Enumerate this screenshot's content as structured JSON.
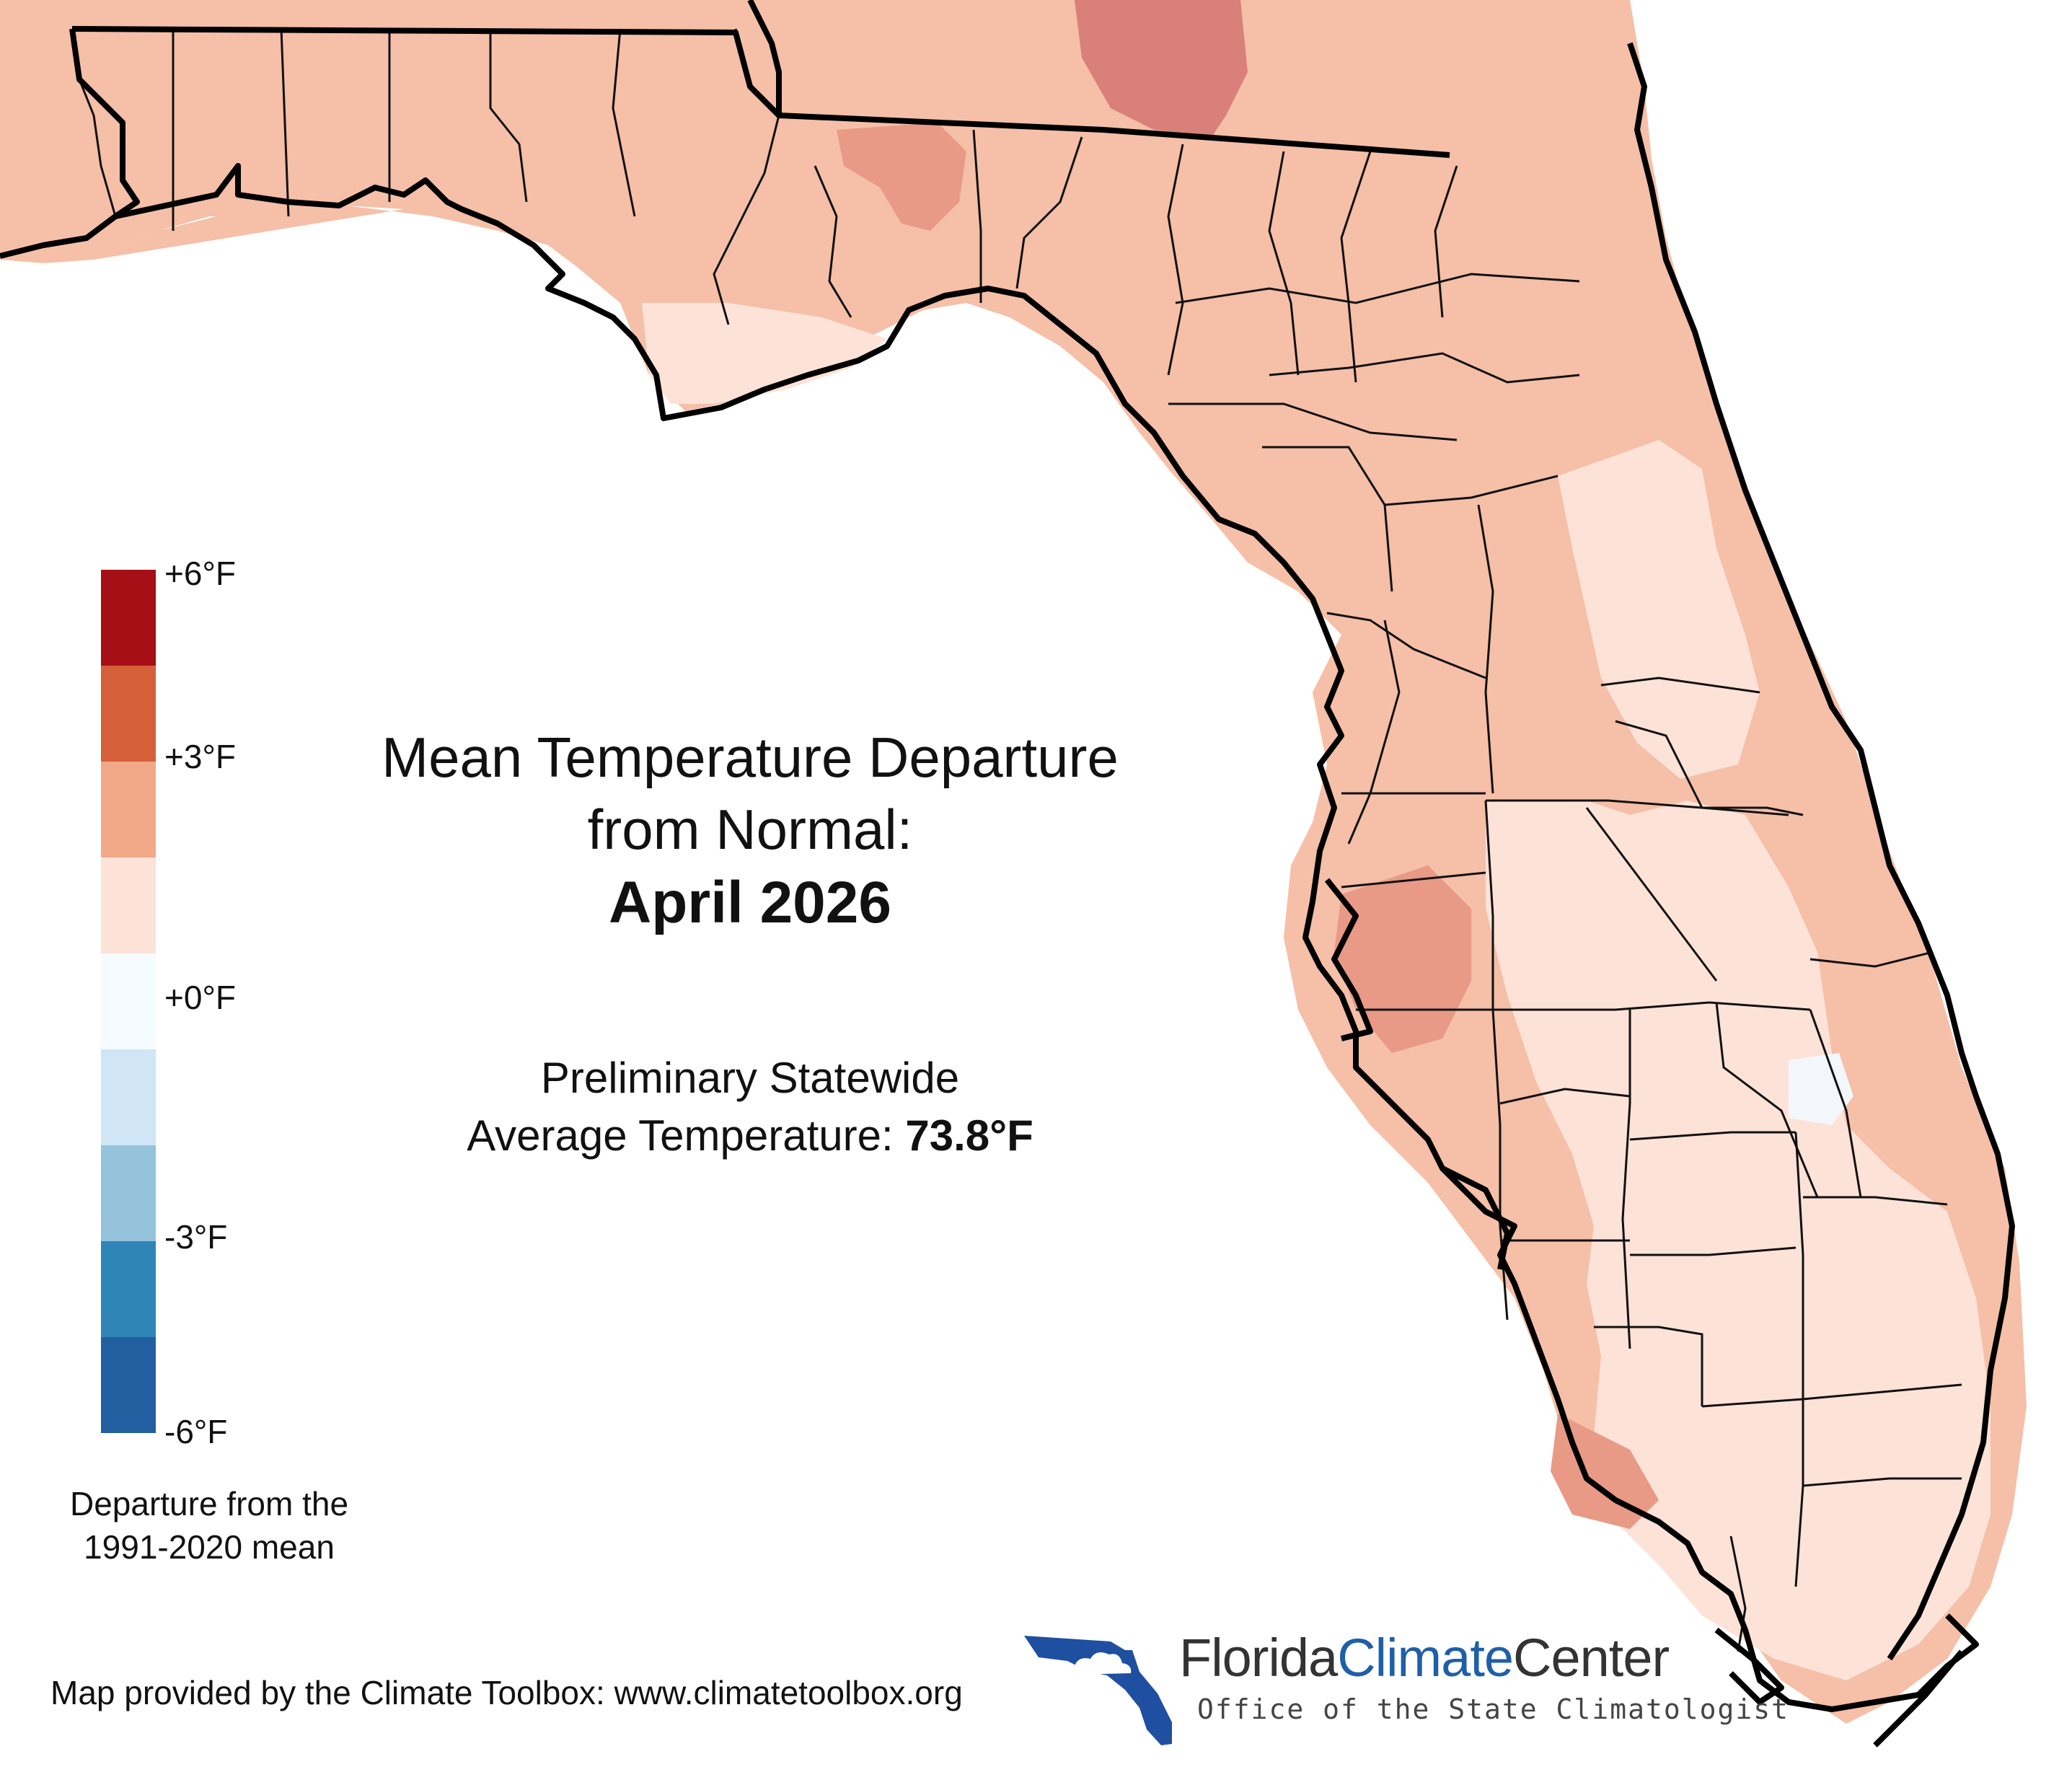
{
  "title": {
    "line1": "Mean Temperature Departure",
    "line2": "from Normal:",
    "date": "April 2026"
  },
  "statewide": {
    "line1": "Preliminary Statewide",
    "line2_label": "Average Temperature: ",
    "line2_value": "73.8°F"
  },
  "legend": {
    "ticks": [
      "+6°F",
      "+3°F",
      "+0°F",
      "-3°F",
      "-6°F"
    ],
    "colors": [
      "#a50f15",
      "#d6603a",
      "#f1a988",
      "#fde2d7",
      "#f5fbff",
      "#d0e5f5",
      "#95c3dc",
      "#2f85b6",
      "#215fa0"
    ],
    "caption_line1": "Departure from the",
    "caption_line2": "1991-2020 mean"
  },
  "credit": "Map provided by the Climate Toolbox: www.climatetoolbox.org",
  "logo": {
    "name_part1": "Florida",
    "name_part2": "Climate",
    "name_part3": "Center",
    "subtitle": "Office of the State Climatologist",
    "name_color_dark": "#333333",
    "name_color_blue": "#1f5fa8"
  },
  "map_colors": {
    "light": "#fde2d7",
    "medium": "#f5bfa8",
    "warm": "#e89a86",
    "warmer": "#d9807a",
    "near_zero": "#f3f7fb"
  }
}
